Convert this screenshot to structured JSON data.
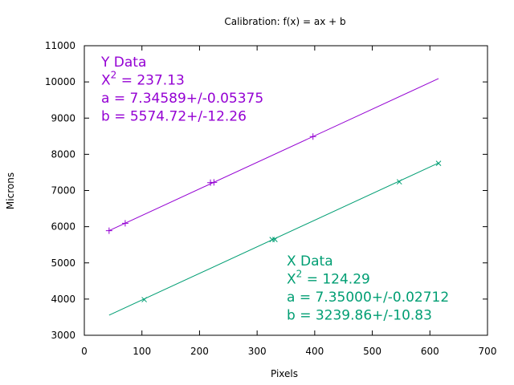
{
  "chart_data": {
    "type": "scatter",
    "title": "Calibration: f(x) = ax + b",
    "xlabel": "Pixels",
    "ylabel": "Microns",
    "xlim": [
      0,
      700
    ],
    "ylim": [
      3000,
      11000
    ],
    "xticks": [
      0,
      100,
      200,
      300,
      400,
      500,
      600,
      700
    ],
    "yticks": [
      3000,
      4000,
      5000,
      6000,
      7000,
      8000,
      9000,
      10000,
      11000
    ],
    "grid": false,
    "series": [
      {
        "name": "Y Data",
        "color": "#9400d3",
        "marker": "plus",
        "points": [
          [
            43,
            5890
          ],
          [
            71,
            6095
          ],
          [
            219,
            7215
          ],
          [
            225,
            7225
          ],
          [
            397,
            8490
          ]
        ],
        "fit": {
          "a": 7.34589,
          "b": 5574.72,
          "x_range": [
            43,
            615
          ],
          "label": "Y Data",
          "chi_label": "X",
          "chi_exp": "2",
          "chi_text": " = 237.13",
          "a_text": "a = 7.34589+/-0.05375",
          "b_text": "b = 5574.72+/-12.26"
        }
      },
      {
        "name": "X Data",
        "color": "#009e73",
        "marker": "cross",
        "points": [
          [
            104,
            3985
          ],
          [
            326,
            5645
          ],
          [
            331,
            5645
          ],
          [
            547,
            7240
          ],
          [
            615,
            7750
          ]
        ],
        "fit": {
          "a": 7.35,
          "b": 3239.86,
          "x_range": [
            43,
            615
          ],
          "label": "X Data",
          "chi_label": "X",
          "chi_exp": "2",
          "chi_text": " = 124.29",
          "a_text": "a = 7.35000+/-0.02712",
          "b_text": "b = 3239.86+/-10.83"
        }
      }
    ]
  }
}
